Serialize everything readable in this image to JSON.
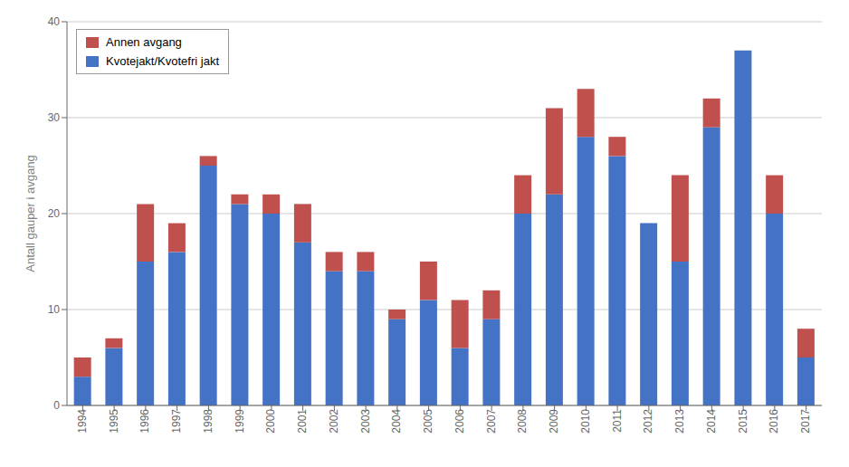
{
  "chart_data": {
    "type": "bar",
    "stacked": true,
    "categories": [
      "1994",
      "1995",
      "1996",
      "1997",
      "1998",
      "1999",
      "2000",
      "2001",
      "2002",
      "2003",
      "2004",
      "2005",
      "2006",
      "2007",
      "2008",
      "2009",
      "2010",
      "2011",
      "2012",
      "2013",
      "2014",
      "2015",
      "2016",
      "2017"
    ],
    "series": [
      {
        "name": "Kvotejakt/Kvotefri jakt",
        "color": "#4472C4",
        "values": [
          3,
          6,
          15,
          16,
          25,
          21,
          20,
          17,
          14,
          14,
          9,
          11,
          6,
          9,
          20,
          22,
          28,
          26,
          19,
          15,
          29,
          37,
          20,
          5
        ]
      },
      {
        "name": "Annen avgang",
        "color": "#C0504D",
        "values": [
          2,
          1,
          6,
          3,
          1,
          1,
          2,
          4,
          2,
          2,
          1,
          4,
          5,
          3,
          4,
          9,
          5,
          2,
          0,
          9,
          3,
          0,
          4,
          3
        ]
      }
    ],
    "ylabel": "Antall gauper i avgang",
    "ylim": [
      0,
      40
    ],
    "yticks": [
      0,
      10,
      20,
      30,
      40
    ],
    "grid": true,
    "legend": "upper left"
  }
}
